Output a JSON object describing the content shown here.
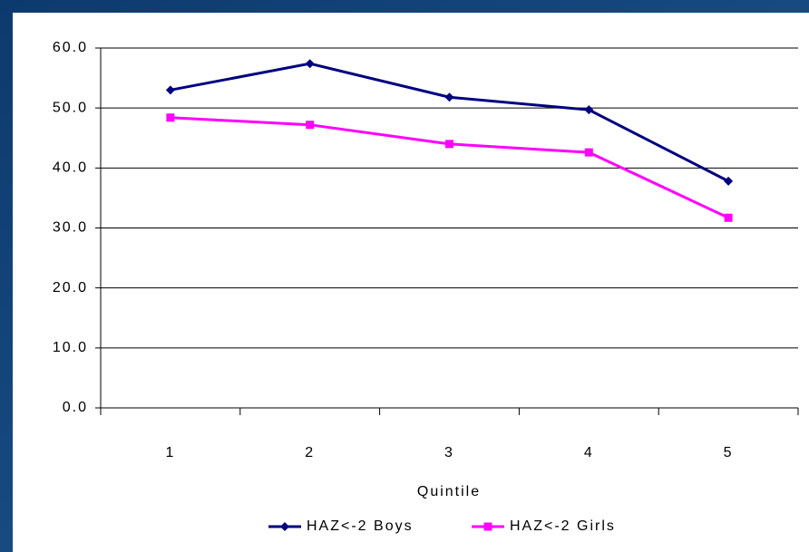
{
  "chart_data": {
    "type": "line",
    "x_label": "Quintile",
    "categories": [
      "1",
      "2",
      "3",
      "4",
      "5"
    ],
    "series": [
      {
        "name": "HAZ<-2 Boys",
        "color": "#000080",
        "marker": "diamond",
        "values": [
          53.0,
          57.4,
          51.8,
          49.7,
          37.8
        ]
      },
      {
        "name": "HAZ<-2 Girls",
        "color": "#ff00ff",
        "marker": "square",
        "values": [
          48.4,
          47.2,
          44.0,
          42.6,
          31.7
        ]
      }
    ],
    "ylim": [
      0,
      60
    ],
    "yticks": [
      {
        "value": 0,
        "label": "0.0"
      },
      {
        "value": 10,
        "label": "10.0"
      },
      {
        "value": 20,
        "label": "20.0"
      },
      {
        "value": 30,
        "label": "30.0"
      },
      {
        "value": 40,
        "label": "40.0"
      },
      {
        "value": 50,
        "label": "50.0"
      },
      {
        "value": 60,
        "label": "60.0"
      }
    ],
    "grid": true,
    "legend": "bottom"
  }
}
